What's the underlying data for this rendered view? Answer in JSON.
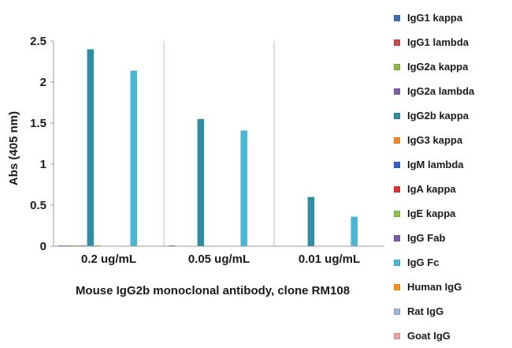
{
  "chart_data": {
    "type": "bar",
    "title": "",
    "xlabel": "Mouse IgG2b monoclonal antibody, clone RM108",
    "ylabel": "Abs (405 nm)",
    "ylim": [
      0,
      2.5
    ],
    "yticks": [
      "0",
      "0.5",
      "1",
      "1.5",
      "2",
      "2.5"
    ],
    "categories": [
      "0.2 ug/mL",
      "0.05 ug/mL",
      "0.01 ug/mL"
    ],
    "grid": "vertical category separators",
    "legend_position": "right",
    "series": [
      {
        "name": "IgG1 kappa",
        "color": "#3e6fb0",
        "values": [
          0.01,
          0.01,
          0.0
        ]
      },
      {
        "name": "IgG1 lambda",
        "color": "#c0504d",
        "values": [
          0.01,
          0.0,
          0.0
        ]
      },
      {
        "name": "IgG2a kappa",
        "color": "#8db843",
        "values": [
          0.01,
          0.0,
          0.0
        ]
      },
      {
        "name": "IgG2a lambda",
        "color": "#7f5fa8",
        "values": [
          0.01,
          0.0,
          0.0
        ]
      },
      {
        "name": "IgG2b kappa",
        "color": "#2f8ea4",
        "values": [
          2.4,
          1.55,
          0.6
        ]
      },
      {
        "name": "IgG3 kappa",
        "color": "#f08a2a",
        "values": [
          0.01,
          0.0,
          0.0
        ]
      },
      {
        "name": "IgM lambda",
        "color": "#2e65c4",
        "values": [
          0.0,
          0.0,
          0.0
        ]
      },
      {
        "name": "IgA kappa",
        "color": "#d23a35",
        "values": [
          0.0,
          0.0,
          0.0
        ]
      },
      {
        "name": "IgE kappa",
        "color": "#8fc34a",
        "values": [
          0.0,
          0.0,
          0.0
        ]
      },
      {
        "name": "IgG Fab",
        "color": "#7a5ba5",
        "values": [
          0.0,
          0.0,
          0.0
        ]
      },
      {
        "name": "IgG Fc",
        "color": "#4ab6d4",
        "values": [
          2.14,
          1.41,
          0.36
        ]
      },
      {
        "name": "Human IgG",
        "color": "#f7941d",
        "values": [
          0.0,
          0.0,
          0.0
        ]
      },
      {
        "name": "Rat IgG",
        "color": "#9fb7dc",
        "values": [
          0.0,
          0.0,
          0.0
        ]
      },
      {
        "name": "Goat IgG",
        "color": "#e4a6a4",
        "values": [
          0.0,
          0.0,
          0.0
        ]
      }
    ]
  }
}
